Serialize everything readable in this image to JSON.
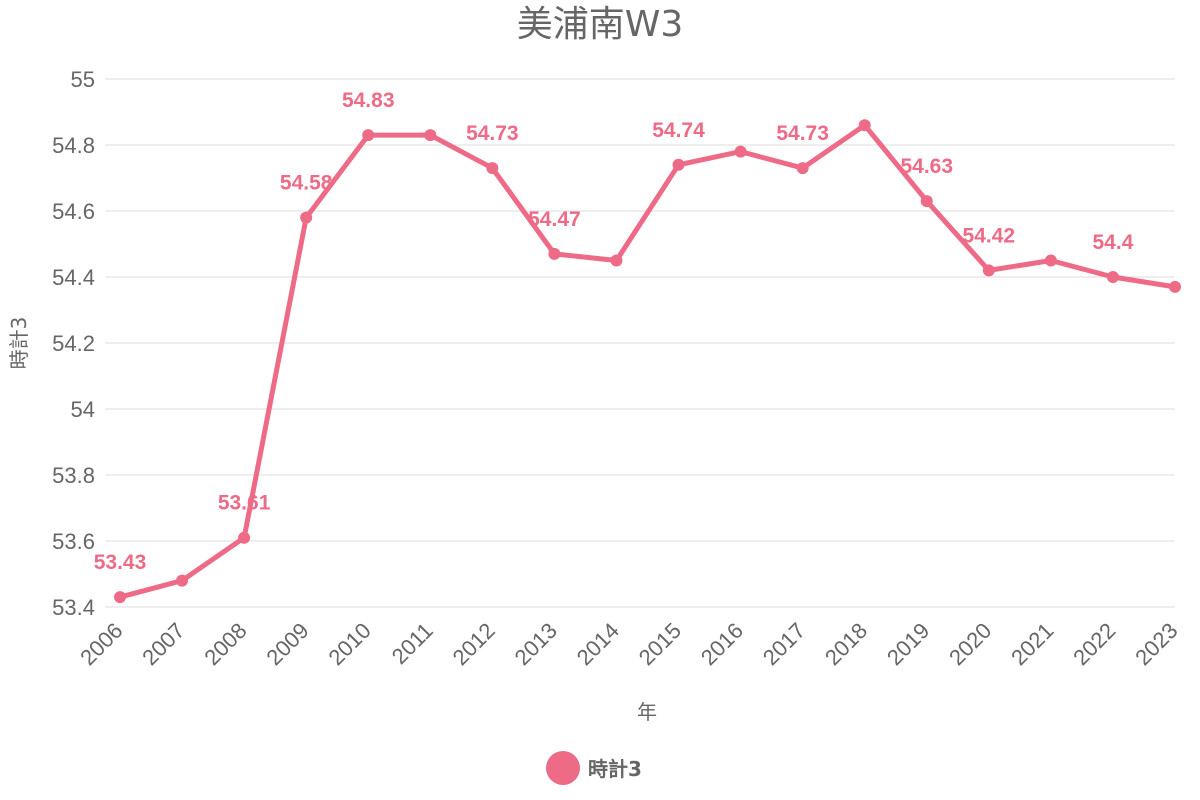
{
  "chart_data": {
    "type": "line",
    "title": "美浦南W3",
    "xlabel": "年",
    "ylabel": "時計3",
    "x": [
      "2006",
      "2007",
      "2008",
      "2009",
      "2010",
      "2011",
      "2012",
      "2013",
      "2014",
      "2015",
      "2016",
      "2017",
      "2018",
      "2019",
      "2020",
      "2021",
      "2022",
      "2023"
    ],
    "series": [
      {
        "name": "時計3",
        "color": "#ee6b87",
        "values": [
          53.43,
          53.48,
          53.61,
          54.58,
          54.83,
          54.83,
          54.73,
          54.47,
          54.45,
          54.74,
          54.78,
          54.73,
          54.86,
          54.63,
          54.42,
          54.45,
          54.4,
          54.37
        ]
      }
    ],
    "data_labels": [
      {
        "index": 0,
        "text": "53.43"
      },
      {
        "index": 2,
        "text": "53.61"
      },
      {
        "index": 3,
        "text": "54.58"
      },
      {
        "index": 4,
        "text": "54.83"
      },
      {
        "index": 6,
        "text": "54.73"
      },
      {
        "index": 7,
        "text": "54.47"
      },
      {
        "index": 9,
        "text": "54.74"
      },
      {
        "index": 11,
        "text": "54.73"
      },
      {
        "index": 13,
        "text": "54.63"
      },
      {
        "index": 14,
        "text": "54.42"
      },
      {
        "index": 16,
        "text": "54.4"
      }
    ],
    "yticks": [
      "53.4",
      "53.6",
      "53.8",
      "54",
      "54.2",
      "54.4",
      "54.6",
      "54.8",
      "55"
    ],
    "ylim": [
      53.4,
      55
    ],
    "grid": true,
    "legend_position": "bottom-center"
  }
}
